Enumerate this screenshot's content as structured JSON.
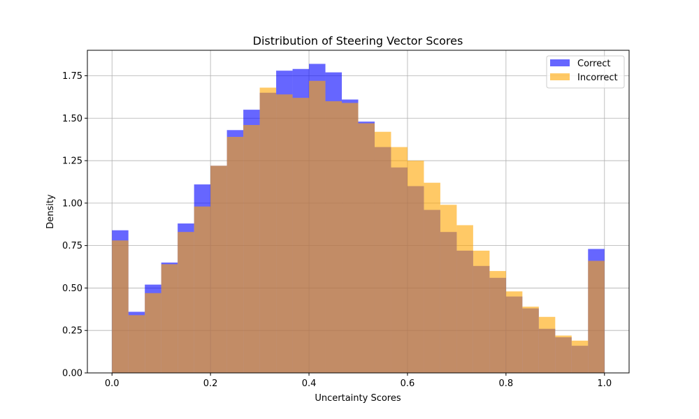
{
  "chart_data": {
    "type": "histogram",
    "title": "Distribution of Steering Vector Scores",
    "xlabel": "Uncertainty Scores",
    "ylabel": "Density",
    "xlim": [
      -0.05,
      1.05
    ],
    "ylim": [
      0,
      1.9
    ],
    "xticks": [
      0.0,
      0.2,
      0.4,
      0.6,
      0.8,
      1.0
    ],
    "xtick_labels": [
      "0.0",
      "0.2",
      "0.4",
      "0.6",
      "0.8",
      "1.0"
    ],
    "yticks": [
      0.0,
      0.25,
      0.5,
      0.75,
      1.0,
      1.25,
      1.5,
      1.75
    ],
    "ytick_labels": [
      "0.00",
      "0.25",
      "0.50",
      "0.75",
      "1.00",
      "1.25",
      "1.50",
      "1.75"
    ],
    "grid": true,
    "legend_position": "upper right",
    "bins": 30,
    "bin_range": [
      0,
      1
    ],
    "series": [
      {
        "name": "Correct",
        "color": "#0000ff",
        "alpha": 0.6,
        "values": [
          0.84,
          0.36,
          0.52,
          0.65,
          0.88,
          1.11,
          1.22,
          1.43,
          1.55,
          1.65,
          1.78,
          1.79,
          1.82,
          1.77,
          1.61,
          1.48,
          1.33,
          1.21,
          1.1,
          0.96,
          0.83,
          0.72,
          0.63,
          0.56,
          0.45,
          0.38,
          0.26,
          0.21,
          0.16,
          0.73
        ]
      },
      {
        "name": "Incorrect",
        "color": "#ffa500",
        "alpha": 0.6,
        "values": [
          0.78,
          0.34,
          0.47,
          0.64,
          0.83,
          0.98,
          1.22,
          1.39,
          1.46,
          1.68,
          1.64,
          1.62,
          1.72,
          1.6,
          1.59,
          1.47,
          1.42,
          1.33,
          1.25,
          1.12,
          0.99,
          0.87,
          0.72,
          0.6,
          0.48,
          0.39,
          0.33,
          0.22,
          0.19,
          0.66
        ]
      }
    ]
  }
}
